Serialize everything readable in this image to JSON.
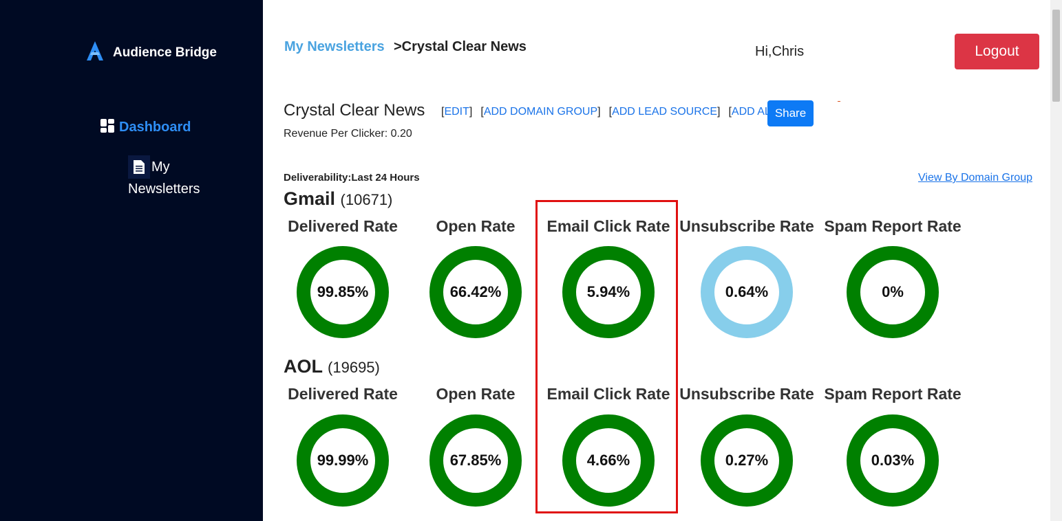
{
  "brand": {
    "name": "Audience Bridge",
    "accent": "#2e8ef5",
    "sidebar_bg": "#000a23"
  },
  "sidebar": {
    "dashboard_label": "Dashboard",
    "newsletters_label_1": "My",
    "newsletters_label_2": "Newsletters"
  },
  "header": {
    "breadcrumb_link": "My Newsletters",
    "breadcrumb_current": ">Crystal Clear News",
    "greeting": "Hi,Chris",
    "logout_label": "Logout"
  },
  "newsletter": {
    "title": "Crystal Clear News",
    "actions": [
      "EDIT",
      "ADD DOMAIN GROUP",
      "ADD LEAD SOURCE",
      "ADD ALL"
    ],
    "share_label": "Share",
    "revenue_text": "Revenue Per Clicker: 0.20",
    "deliverability_label": "Deliverability:Last 24 Hours",
    "view_by_domain_label": "View By Domain Group"
  },
  "domains": [
    {
      "name": "Gmail",
      "count": "(10671)",
      "metrics": [
        {
          "label": "Delivered Rate",
          "value": "99.85%",
          "color": "#008000"
        },
        {
          "label": "Open Rate",
          "value": "66.42%",
          "color": "#008000"
        },
        {
          "label": "Email Click Rate",
          "value": "5.94%",
          "color": "#008000"
        },
        {
          "label": "Unsubscribe Rate",
          "value": "0.64%",
          "color": "#87ceeb"
        },
        {
          "label": "Spam Report Rate",
          "value": "0%",
          "color": "#008000"
        }
      ]
    },
    {
      "name": "AOL",
      "count": "(19695)",
      "metrics": [
        {
          "label": "Delivered Rate",
          "value": "99.99%",
          "color": "#008000"
        },
        {
          "label": "Open Rate",
          "value": "67.85%",
          "color": "#008000"
        },
        {
          "label": "Email Click Rate",
          "value": "4.66%",
          "color": "#008000"
        },
        {
          "label": "Unsubscribe Rate",
          "value": "0.27%",
          "color": "#008000"
        },
        {
          "label": "Spam Report Rate",
          "value": "0.03%",
          "color": "#008000"
        }
      ]
    }
  ]
}
